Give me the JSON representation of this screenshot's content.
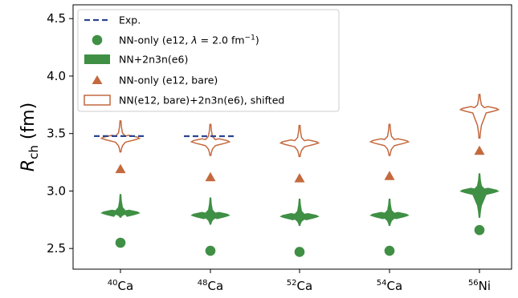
{
  "chart_data": {
    "type": "violin",
    "ylabel": "R_ch (fm)",
    "ylabel_main": "R",
    "ylabel_sub": "ch",
    "ylabel_unit": "(fm)",
    "ylim": [
      2.32,
      4.62
    ],
    "yticks": [
      "2.5",
      "3.0",
      "3.5",
      "4.0",
      "4.5"
    ],
    "yticks_values": [
      2.5,
      3.0,
      3.5,
      4.0,
      4.5
    ],
    "categories": [
      {
        "mass": "40",
        "el": "Ca"
      },
      {
        "mass": "48",
        "el": "Ca"
      },
      {
        "mass": "52",
        "el": "Ca"
      },
      {
        "mass": "54",
        "el": "Ca"
      },
      {
        "mass": "56",
        "el": "Ni"
      }
    ],
    "legend_position": "top-left",
    "legend": [
      {
        "key": "exp",
        "label": "Exp."
      },
      {
        "key": "nn_only",
        "label_pre": "NN-only (e12, ",
        "label_lambda": "λ",
        "label_mid": " = 2.0 fm",
        "label_sup": "−1",
        "label_post": ")"
      },
      {
        "key": "nn_2n3n",
        "label": "NN+2n3n(e6)"
      },
      {
        "key": "nn_bare",
        "label": "NN-only (e12, bare)"
      },
      {
        "key": "shifted",
        "label": "NN(e12, bare)+2n3n(e6), shifted"
      }
    ],
    "colors": {
      "exp": "#2b4590",
      "green": "#3f8f45",
      "orange": "#c4693e"
    },
    "series": {
      "exp": [
        3.478,
        3.477,
        null,
        null,
        null
      ],
      "nn_only": [
        2.55,
        2.48,
        2.47,
        2.48,
        2.66
      ],
      "nn_bare": [
        3.19,
        3.12,
        3.11,
        3.13,
        3.35
      ],
      "nn_2n3n_violin": [
        {
          "min": 2.77,
          "center": 2.81,
          "max": 2.97
        },
        {
          "min": 2.71,
          "center": 2.79,
          "max": 2.94
        },
        {
          "min": 2.7,
          "center": 2.78,
          "max": 2.93
        },
        {
          "min": 2.7,
          "center": 2.79,
          "max": 2.93
        },
        {
          "min": 2.77,
          "center": 3.0,
          "max": 3.15
        }
      ],
      "shifted_violin": [
        {
          "min": 3.34,
          "center": 3.46,
          "max": 3.61
        },
        {
          "min": 3.31,
          "center": 3.43,
          "max": 3.58
        },
        {
          "min": 3.3,
          "center": 3.42,
          "max": 3.57
        },
        {
          "min": 3.31,
          "center": 3.43,
          "max": 3.58
        },
        {
          "min": 3.46,
          "center": 3.71,
          "max": 3.84
        }
      ]
    }
  }
}
